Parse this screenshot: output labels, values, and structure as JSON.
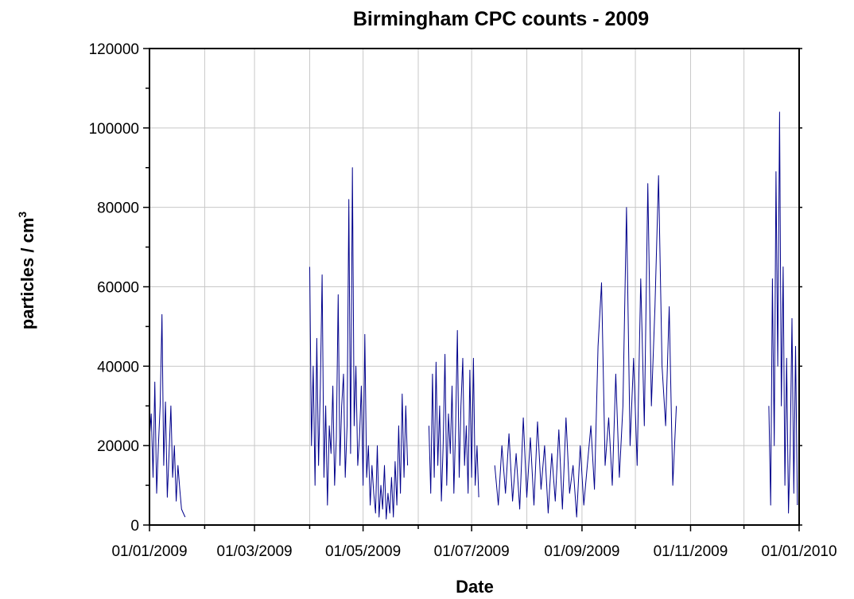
{
  "chart_data": {
    "type": "line",
    "title": "Birmingham CPC counts - 2009",
    "xlabel": "Date",
    "ylabel": "particles / cm",
    "ylabel_superscript": "3",
    "x_tick_labels": [
      "01/01/2009",
      "01/03/2009",
      "01/05/2009",
      "01/07/2009",
      "01/09/2009",
      "01/11/2009",
      "01/01/2010"
    ],
    "y_tick_labels": [
      "0",
      "20000",
      "40000",
      "60000",
      "80000",
      "100000",
      "120000"
    ],
    "xlim": [
      "2009-01-01",
      "2010-01-01"
    ],
    "ylim": [
      0,
      120000
    ],
    "grid": true,
    "colors": {
      "series": "#00008b",
      "grid": "#c8c8c8"
    },
    "series": [
      {
        "segments": [
          {
            "start": "2009-01-01",
            "end": "2009-01-21",
            "points": [
              [
                "2009-01-01",
                22000
              ],
              [
                "2009-01-02",
                28000
              ],
              [
                "2009-01-03",
                12000
              ],
              [
                "2009-01-04",
                36000
              ],
              [
                "2009-01-05",
                8000
              ],
              [
                "2009-01-06",
                20000
              ],
              [
                "2009-01-07",
                30000
              ],
              [
                "2009-01-08",
                53000
              ],
              [
                "2009-01-09",
                15000
              ],
              [
                "2009-01-10",
                31000
              ],
              [
                "2009-01-11",
                7000
              ],
              [
                "2009-01-12",
                18000
              ],
              [
                "2009-01-13",
                30000
              ],
              [
                "2009-01-14",
                12000
              ],
              [
                "2009-01-15",
                20000
              ],
              [
                "2009-01-16",
                6000
              ],
              [
                "2009-01-17",
                15000
              ],
              [
                "2009-01-18",
                9000
              ],
              [
                "2009-01-19",
                4000
              ],
              [
                "2009-01-20",
                3000
              ],
              [
                "2009-01-21",
                2000
              ]
            ]
          },
          {
            "start": "2009-04-01",
            "end": "2009-05-26",
            "points": [
              [
                "2009-04-01",
                65000
              ],
              [
                "2009-04-02",
                20000
              ],
              [
                "2009-04-03",
                40000
              ],
              [
                "2009-04-04",
                10000
              ],
              [
                "2009-04-05",
                47000
              ],
              [
                "2009-04-06",
                15000
              ],
              [
                "2009-04-07",
                35000
              ],
              [
                "2009-04-08",
                63000
              ],
              [
                "2009-04-09",
                12000
              ],
              [
                "2009-04-10",
                30000
              ],
              [
                "2009-04-11",
                5000
              ],
              [
                "2009-04-12",
                25000
              ],
              [
                "2009-04-13",
                18000
              ],
              [
                "2009-04-14",
                35000
              ],
              [
                "2009-04-15",
                10000
              ],
              [
                "2009-04-16",
                22000
              ],
              [
                "2009-04-17",
                58000
              ],
              [
                "2009-04-18",
                15000
              ],
              [
                "2009-04-19",
                30000
              ],
              [
                "2009-04-20",
                38000
              ],
              [
                "2009-04-21",
                12000
              ],
              [
                "2009-04-22",
                25000
              ],
              [
                "2009-04-23",
                82000
              ],
              [
                "2009-04-24",
                18000
              ],
              [
                "2009-04-25",
                90000
              ],
              [
                "2009-04-26",
                25000
              ],
              [
                "2009-04-27",
                40000
              ],
              [
                "2009-04-28",
                15000
              ],
              [
                "2009-04-29",
                22000
              ],
              [
                "2009-04-30",
                35000
              ],
              [
                "2009-05-01",
                10000
              ],
              [
                "2009-05-02",
                48000
              ],
              [
                "2009-05-03",
                12000
              ],
              [
                "2009-05-04",
                20000
              ],
              [
                "2009-05-05",
                5000
              ],
              [
                "2009-05-06",
                15000
              ],
              [
                "2009-05-07",
                8000
              ],
              [
                "2009-05-08",
                3000
              ],
              [
                "2009-05-09",
                20000
              ],
              [
                "2009-05-10",
                2000
              ],
              [
                "2009-05-11",
                10000
              ],
              [
                "2009-05-12",
                4000
              ],
              [
                "2009-05-13",
                15000
              ],
              [
                "2009-05-14",
                1500
              ],
              [
                "2009-05-15",
                8000
              ],
              [
                "2009-05-16",
                3000
              ],
              [
                "2009-05-17",
                12000
              ],
              [
                "2009-05-18",
                2000
              ],
              [
                "2009-05-19",
                16000
              ],
              [
                "2009-05-20",
                5000
              ],
              [
                "2009-05-21",
                25000
              ],
              [
                "2009-05-22",
                8000
              ],
              [
                "2009-05-23",
                33000
              ],
              [
                "2009-05-24",
                12000
              ],
              [
                "2009-05-25",
                30000
              ],
              [
                "2009-05-26",
                15000
              ]
            ]
          },
          {
            "start": "2009-06-07",
            "end": "2009-07-05",
            "points": [
              [
                "2009-06-07",
                25000
              ],
              [
                "2009-06-08",
                8000
              ],
              [
                "2009-06-09",
                38000
              ],
              [
                "2009-06-10",
                12000
              ],
              [
                "2009-06-11",
                41000
              ],
              [
                "2009-06-12",
                15000
              ],
              [
                "2009-06-13",
                30000
              ],
              [
                "2009-06-14",
                6000
              ],
              [
                "2009-06-15",
                20000
              ],
              [
                "2009-06-16",
                43000
              ],
              [
                "2009-06-17",
                10000
              ],
              [
                "2009-06-18",
                28000
              ],
              [
                "2009-06-19",
                18000
              ],
              [
                "2009-06-20",
                35000
              ],
              [
                "2009-06-21",
                8000
              ],
              [
                "2009-06-22",
                25000
              ],
              [
                "2009-06-23",
                49000
              ],
              [
                "2009-06-24",
                12000
              ],
              [
                "2009-06-25",
                30000
              ],
              [
                "2009-06-26",
                42000
              ],
              [
                "2009-06-27",
                15000
              ],
              [
                "2009-06-28",
                25000
              ],
              [
                "2009-06-29",
                8000
              ],
              [
                "2009-06-30",
                39000
              ],
              [
                "2009-07-01",
                12000
              ],
              [
                "2009-07-02",
                42000
              ],
              [
                "2009-07-03",
                10000
              ],
              [
                "2009-07-04",
                20000
              ],
              [
                "2009-07-05",
                7000
              ]
            ]
          },
          {
            "start": "2009-07-14",
            "end": "2009-10-24",
            "points": [
              [
                "2009-07-14",
                15000
              ],
              [
                "2009-07-16",
                5000
              ],
              [
                "2009-07-18",
                20000
              ],
              [
                "2009-07-20",
                8000
              ],
              [
                "2009-07-22",
                23000
              ],
              [
                "2009-07-24",
                6000
              ],
              [
                "2009-07-26",
                18000
              ],
              [
                "2009-07-28",
                4000
              ],
              [
                "2009-07-30",
                27000
              ],
              [
                "2009-08-01",
                7000
              ],
              [
                "2009-08-03",
                22000
              ],
              [
                "2009-08-05",
                5000
              ],
              [
                "2009-08-07",
                26000
              ],
              [
                "2009-08-09",
                9000
              ],
              [
                "2009-08-11",
                20000
              ],
              [
                "2009-08-13",
                3000
              ],
              [
                "2009-08-15",
                18000
              ],
              [
                "2009-08-17",
                6000
              ],
              [
                "2009-08-19",
                24000
              ],
              [
                "2009-08-21",
                4000
              ],
              [
                "2009-08-23",
                27000
              ],
              [
                "2009-08-25",
                8000
              ],
              [
                "2009-08-27",
                15000
              ],
              [
                "2009-08-29",
                2000
              ],
              [
                "2009-08-31",
                20000
              ],
              [
                "2009-09-02",
                5000
              ],
              [
                "2009-09-04",
                15000
              ],
              [
                "2009-09-06",
                25000
              ],
              [
                "2009-09-08",
                9000
              ],
              [
                "2009-09-10",
                45000
              ],
              [
                "2009-09-12",
                61000
              ],
              [
                "2009-09-14",
                15000
              ],
              [
                "2009-09-16",
                27000
              ],
              [
                "2009-09-18",
                10000
              ],
              [
                "2009-09-20",
                38000
              ],
              [
                "2009-09-22",
                12000
              ],
              [
                "2009-09-24",
                30000
              ],
              [
                "2009-09-26",
                80000
              ],
              [
                "2009-09-28",
                20000
              ],
              [
                "2009-09-30",
                42000
              ],
              [
                "2009-10-02",
                15000
              ],
              [
                "2009-10-04",
                62000
              ],
              [
                "2009-10-06",
                25000
              ],
              [
                "2009-10-08",
                86000
              ],
              [
                "2009-10-10",
                30000
              ],
              [
                "2009-10-12",
                55000
              ],
              [
                "2009-10-14",
                88000
              ],
              [
                "2009-10-16",
                40000
              ],
              [
                "2009-10-18",
                25000
              ],
              [
                "2009-10-20",
                55000
              ],
              [
                "2009-10-22",
                10000
              ],
              [
                "2009-10-24",
                30000
              ]
            ]
          },
          {
            "start": "2009-12-15",
            "end": "2009-12-31",
            "points": [
              [
                "2009-12-15",
                30000
              ],
              [
                "2009-12-16",
                5000
              ],
              [
                "2009-12-17",
                62000
              ],
              [
                "2009-12-18",
                20000
              ],
              [
                "2009-12-19",
                89000
              ],
              [
                "2009-12-20",
                40000
              ],
              [
                "2009-12-21",
                104000
              ],
              [
                "2009-12-22",
                30000
              ],
              [
                "2009-12-23",
                65000
              ],
              [
                "2009-12-24",
                10000
              ],
              [
                "2009-12-25",
                42000
              ],
              [
                "2009-12-26",
                3000
              ],
              [
                "2009-12-27",
                20000
              ],
              [
                "2009-12-28",
                52000
              ],
              [
                "2009-12-29",
                8000
              ],
              [
                "2009-12-30",
                45000
              ],
              [
                "2009-12-31",
                5000
              ]
            ]
          }
        ]
      }
    ]
  }
}
